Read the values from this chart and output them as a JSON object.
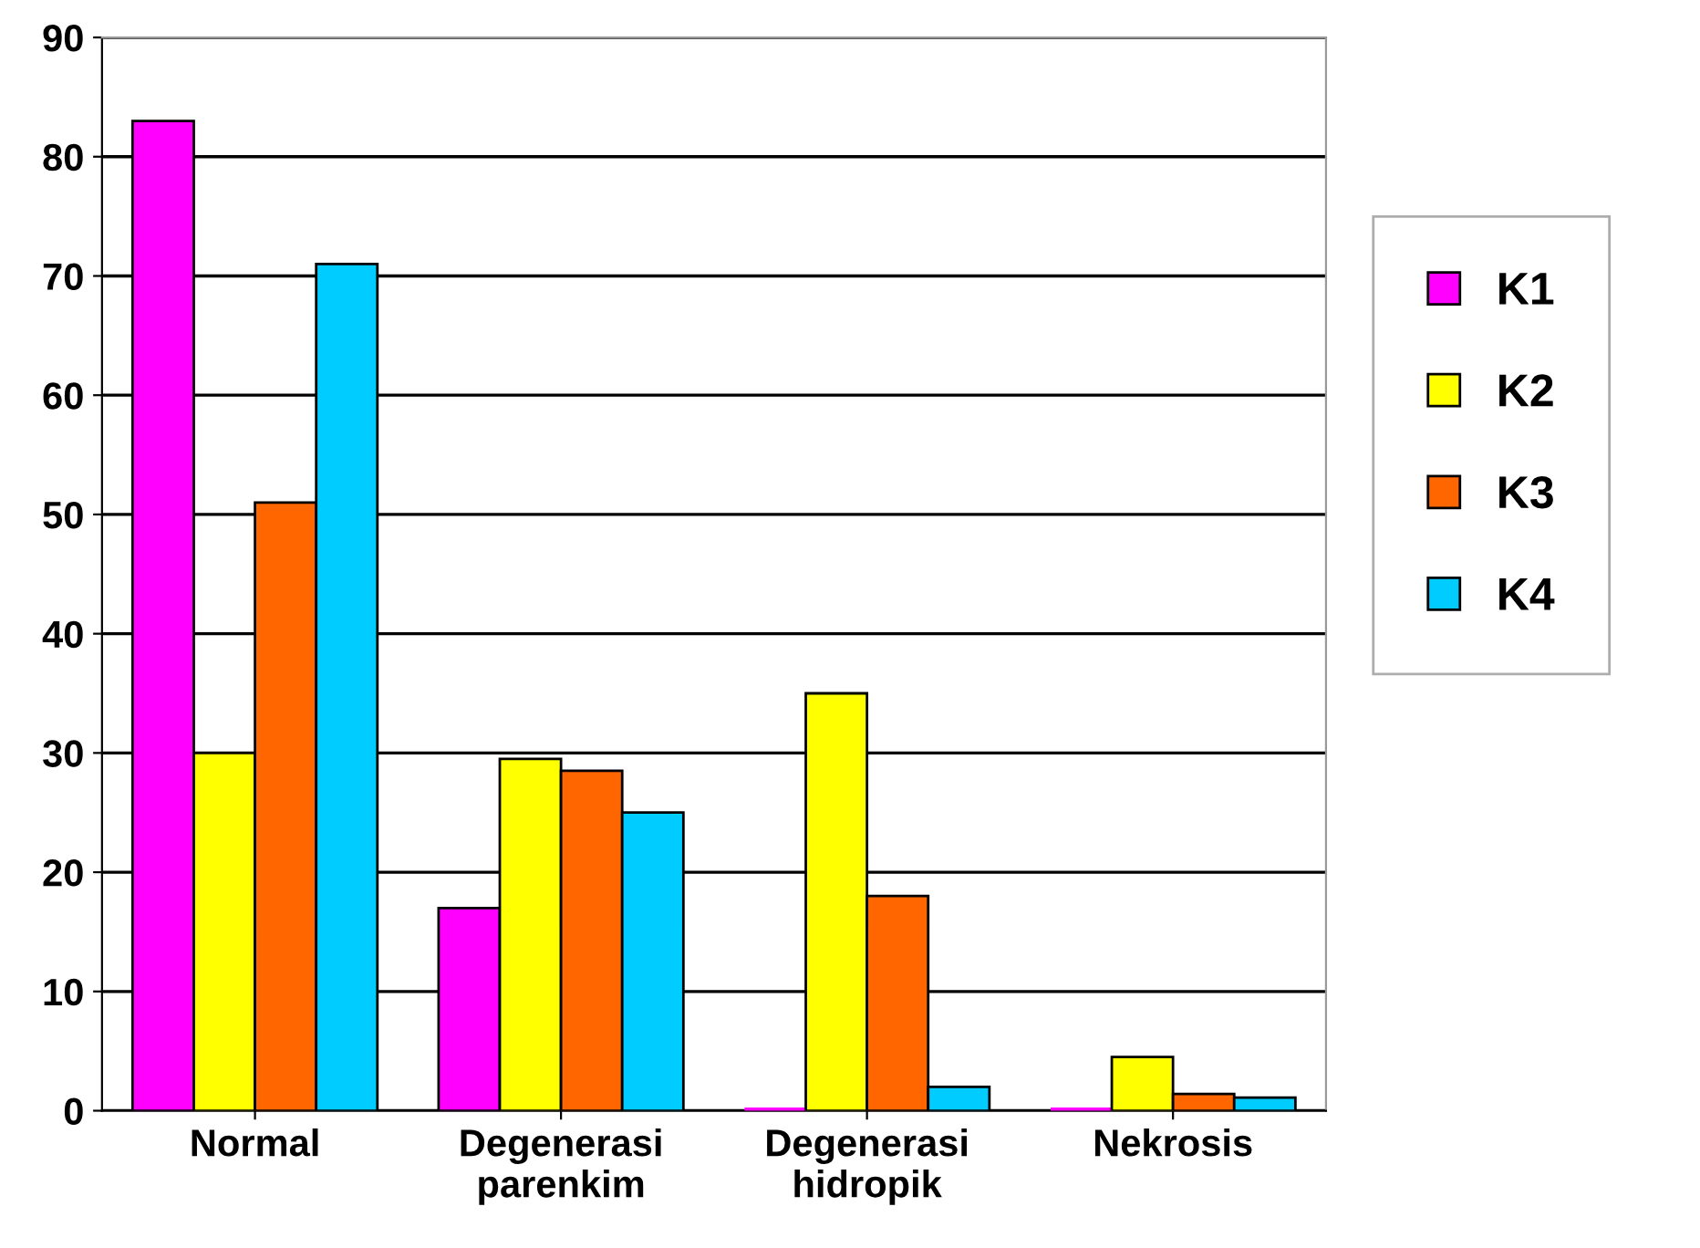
{
  "chart_data": {
    "type": "bar",
    "categories": [
      "Normal",
      "Degenerasi\nparenkim",
      "Degenerasi\nhidropik",
      "Nekrosis"
    ],
    "series": [
      {
        "name": "K1",
        "color": "#ff00ff",
        "values": [
          83,
          17,
          0,
          0
        ]
      },
      {
        "name": "K2",
        "color": "#ffff00",
        "values": [
          30,
          29.5,
          35,
          4.5
        ]
      },
      {
        "name": "K3",
        "color": "#ff6600",
        "values": [
          51,
          28.5,
          18,
          1.4
        ]
      },
      {
        "name": "K4",
        "color": "#00ccff",
        "values": [
          71,
          25,
          2,
          1.1
        ]
      }
    ],
    "ylim": [
      0,
      90
    ],
    "yticks": [
      0,
      10,
      20,
      30,
      40,
      50,
      60,
      70,
      80,
      90
    ],
    "grid": "y",
    "legend": "right"
  }
}
